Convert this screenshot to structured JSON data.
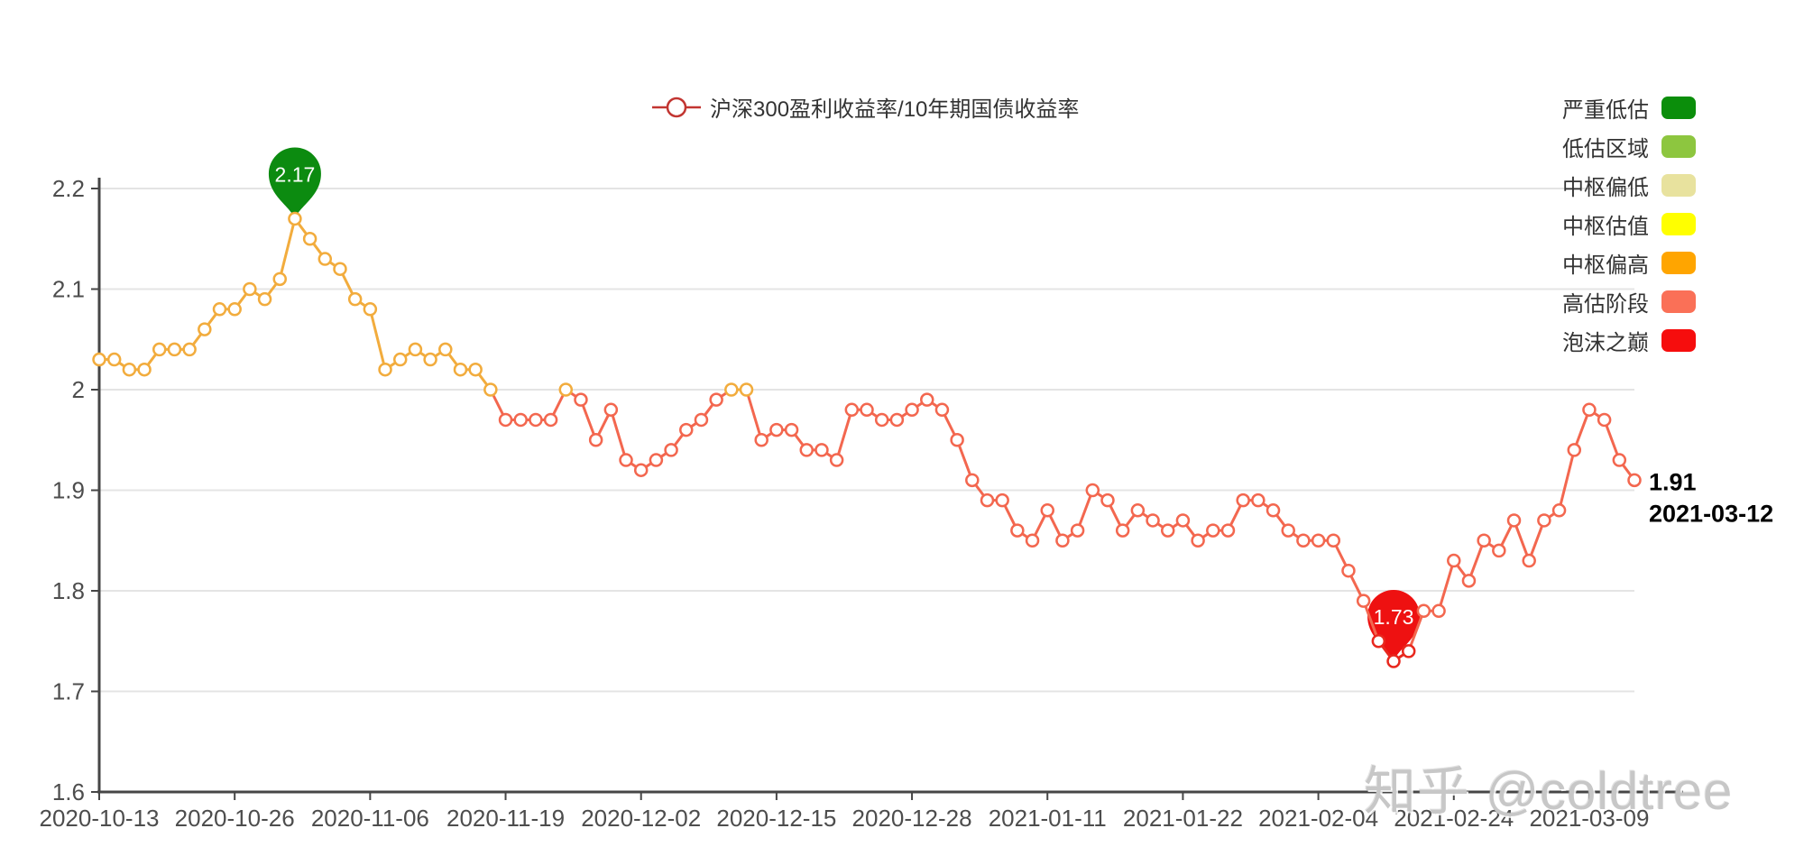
{
  "watermark": "知乎 @coldtree",
  "legend": {
    "series_label": "沪深300盈利收益率/10年期国债收益率",
    "series_marker_color": "#c23531",
    "zones": [
      {
        "label": "严重低估",
        "color": "#0b8e0b"
      },
      {
        "label": "低估区域",
        "color": "#8dc63f"
      },
      {
        "label": "中枢偏低",
        "color": "#e8e29e"
      },
      {
        "label": "中枢估值",
        "color": "#ffff00"
      },
      {
        "label": "中枢偏高",
        "color": "#ffa500"
      },
      {
        "label": "高估阶段",
        "color": "#fa7057"
      },
      {
        "label": "泡沫之巅",
        "color": "#f60d0d"
      }
    ]
  },
  "chart_data": {
    "type": "line",
    "title": "沪深300盈利收益率/10年期国债收益率",
    "xlabel": "",
    "ylabel": "",
    "grid": true,
    "legend_position": "top-center",
    "ylim": [
      1.6,
      2.2
    ],
    "y_ticks": [
      "2.2",
      "2.1",
      "2",
      "1.9",
      "1.8",
      "1.7",
      "1.6"
    ],
    "x_tick_labels": [
      "2020-10-13",
      "2020-10-26",
      "2020-11-06",
      "2020-11-19",
      "2020-12-02",
      "2020-12-15",
      "2020-12-28",
      "2021-01-11",
      "2021-01-22",
      "2021-02-04",
      "2021-02-24",
      "2021-03-09"
    ],
    "x_tick_indices": [
      0,
      9,
      18,
      27,
      36,
      45,
      54,
      63,
      72,
      81,
      90,
      99
    ],
    "x": [
      "2020-10-13",
      "2020-10-14",
      "2020-10-15",
      "2020-10-16",
      "2020-10-19",
      "2020-10-20",
      "2020-10-21",
      "2020-10-22",
      "2020-10-23",
      "2020-10-26",
      "2020-10-27",
      "2020-10-28",
      "2020-10-29",
      "2020-10-30",
      "2020-11-02",
      "2020-11-03",
      "2020-11-04",
      "2020-11-05",
      "2020-11-06",
      "2020-11-09",
      "2020-11-10",
      "2020-11-11",
      "2020-11-12",
      "2020-11-13",
      "2020-11-16",
      "2020-11-17",
      "2020-11-18",
      "2020-11-19",
      "2020-11-20",
      "2020-11-23",
      "2020-11-24",
      "2020-11-25",
      "2020-11-26",
      "2020-11-27",
      "2020-11-30",
      "2020-12-01",
      "2020-12-02",
      "2020-12-03",
      "2020-12-04",
      "2020-12-07",
      "2020-12-08",
      "2020-12-09",
      "2020-12-10",
      "2020-12-11",
      "2020-12-14",
      "2020-12-15",
      "2020-12-16",
      "2020-12-17",
      "2020-12-18",
      "2020-12-21",
      "2020-12-22",
      "2020-12-23",
      "2020-12-24",
      "2020-12-25",
      "2020-12-28",
      "2020-12-29",
      "2020-12-30",
      "2020-12-31",
      "2021-01-04",
      "2021-01-05",
      "2021-01-06",
      "2021-01-07",
      "2021-01-08",
      "2021-01-11",
      "2021-01-12",
      "2021-01-13",
      "2021-01-14",
      "2021-01-15",
      "2021-01-18",
      "2021-01-19",
      "2021-01-20",
      "2021-01-21",
      "2021-01-22",
      "2021-01-25",
      "2021-01-26",
      "2021-01-27",
      "2021-01-28",
      "2021-01-29",
      "2021-02-01",
      "2021-02-02",
      "2021-02-03",
      "2021-02-04",
      "2021-02-05",
      "2021-02-08",
      "2021-02-09",
      "2021-02-10",
      "2021-02-18",
      "2021-02-19",
      "2021-02-22",
      "2021-02-23",
      "2021-02-24",
      "2021-02-25",
      "2021-02-26",
      "2021-03-01",
      "2021-03-02",
      "2021-03-03",
      "2021-03-04",
      "2021-03-05",
      "2021-03-08",
      "2021-03-09",
      "2021-03-10",
      "2021-03-11",
      "2021-03-12"
    ],
    "values": [
      2.03,
      2.03,
      2.02,
      2.02,
      2.04,
      2.04,
      2.04,
      2.06,
      2.08,
      2.08,
      2.1,
      2.09,
      2.11,
      2.17,
      2.15,
      2.13,
      2.12,
      2.09,
      2.08,
      2.02,
      2.03,
      2.04,
      2.03,
      2.04,
      2.02,
      2.02,
      2.0,
      1.97,
      1.97,
      1.97,
      1.97,
      2.0,
      1.99,
      1.95,
      1.98,
      1.93,
      1.92,
      1.93,
      1.94,
      1.96,
      1.97,
      1.99,
      2.0,
      2.0,
      1.95,
      1.96,
      1.96,
      1.94,
      1.94,
      1.93,
      1.98,
      1.98,
      1.97,
      1.97,
      1.98,
      1.99,
      1.98,
      1.95,
      1.91,
      1.89,
      1.89,
      1.86,
      1.85,
      1.88,
      1.85,
      1.86,
      1.9,
      1.89,
      1.86,
      1.88,
      1.87,
      1.86,
      1.87,
      1.85,
      1.86,
      1.86,
      1.89,
      1.89,
      1.88,
      1.86,
      1.85,
      1.85,
      1.85,
      1.82,
      1.79,
      1.75,
      1.73,
      1.74,
      1.78,
      1.78,
      1.83,
      1.81,
      1.85,
      1.84,
      1.87,
      1.83,
      1.87,
      1.88,
      1.94,
      1.98,
      1.97,
      1.93,
      1.91
    ],
    "max_marker": {
      "index": 13,
      "value": 2.17,
      "label": "2.17",
      "date": "2020-10-30",
      "color": "#0c8b10"
    },
    "min_marker": {
      "index": 86,
      "value": 1.73,
      "label": "1.73",
      "date": "2021-02-18",
      "color": "#ee1111"
    },
    "end_label": {
      "value": "1.91",
      "date": "2021-03-12"
    },
    "line_colors": {
      "high": "#f2ac3d",
      "mid": "#f3674f",
      "low": "#e8281e",
      "thresholds": [
        2.0,
        1.76
      ]
    },
    "axis_color": "#464646",
    "grid_color": "#e4e4e4",
    "tick_label_color": "#4d4d4d"
  }
}
